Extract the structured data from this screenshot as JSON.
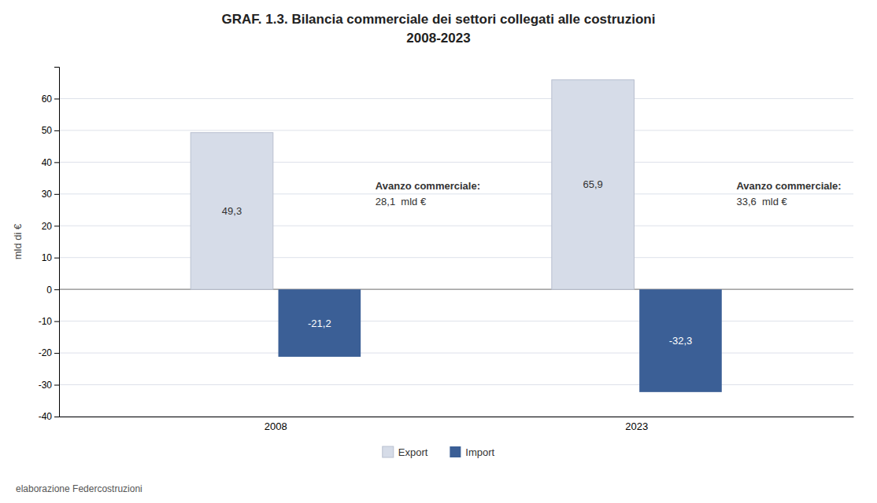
{
  "chart_data": {
    "type": "bar",
    "title": "GRAF. 1.3. Bilancia commerciale dei settori collegati alle costruzioni",
    "subtitle": "2008-2023",
    "ylabel": "mld di €",
    "categories": [
      "2008",
      "2023"
    ],
    "series": [
      {
        "name": "Export",
        "color": "#d6dce8",
        "values": [
          49.3,
          65.9
        ],
        "value_labels": [
          "49,3",
          "65,9"
        ]
      },
      {
        "name": "Import",
        "color": "#3b5f96",
        "values": [
          -21.2,
          -32.3
        ],
        "value_labels": [
          "-21,2",
          "-32,3"
        ]
      }
    ],
    "ylim": [
      -40,
      70
    ],
    "yticks": [
      -40,
      -30,
      -20,
      -10,
      0,
      10,
      20,
      30,
      40,
      50,
      60
    ],
    "grid": true,
    "legend": "bottom",
    "data_labels": true,
    "annotations": [
      [
        "Avanzo commerciale:",
        "28,1  mld €"
      ],
      [
        "Avanzo commerciale:",
        "33,6  mld €"
      ]
    ],
    "footer": "elaborazione Federcostruzioni"
  }
}
